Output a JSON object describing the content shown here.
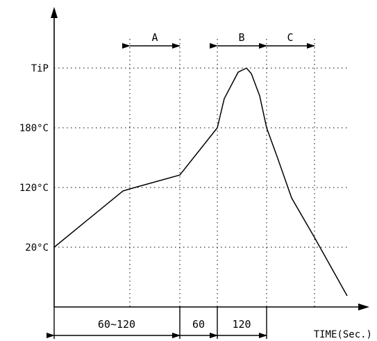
{
  "chart_data": {
    "type": "line",
    "y_levels": [
      {
        "label": "TiP"
      },
      {
        "label": "180°C"
      },
      {
        "label": "120°C"
      },
      {
        "label": "20°C"
      }
    ],
    "zones": [
      {
        "label": "A"
      },
      {
        "label": "B"
      },
      {
        "label": "C"
      }
    ],
    "time_segments": [
      {
        "label": "60~120"
      },
      {
        "label": "60"
      },
      {
        "label": "120"
      }
    ],
    "xlabel": "TIME(Sec.)",
    "series": [
      {
        "values_description_free": true
      }
    ],
    "grid": true
  }
}
